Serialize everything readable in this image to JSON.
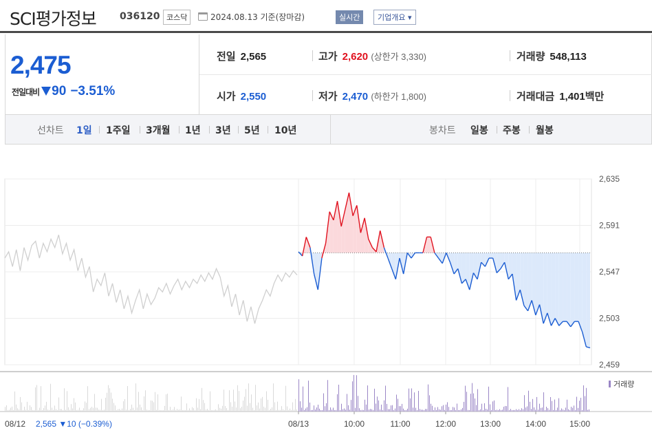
{
  "header": {
    "name": "SCI평가정보",
    "code": "036120",
    "market": "코스닥",
    "date": "2024.08.13 기준(장마감)",
    "realtime": "실시간",
    "company_info": "기업개요 ▾"
  },
  "quote": {
    "price": "2,475",
    "change_label": "전일대비",
    "change_value": "90",
    "change_pct": "−3.51%",
    "prev_close_label": "전일",
    "prev_close": "2,565",
    "open_label": "시가",
    "open": "2,550",
    "high_label": "고가",
    "high": "2,620",
    "upper_limit": "(상한가 3,330)",
    "low_label": "저가",
    "low": "2,470",
    "lower_limit": "(하한가 1,800)",
    "volume_label": "거래량",
    "volume": "548,113",
    "amount_label": "거래대금",
    "amount": "1,401",
    "amount_unit": "백만"
  },
  "tabs": {
    "line_label": "선차트",
    "line_periods": [
      "1일",
      "1주일",
      "3개월",
      "1년",
      "3년",
      "5년",
      "10년"
    ],
    "active": "1일",
    "candle_label": "봉차트",
    "candle_periods": [
      "일봉",
      "주봉",
      "월봉"
    ]
  },
  "colors": {
    "up": "#e0111e",
    "down": "#1b5dd2",
    "prev_line": "#cfcfcf",
    "volume": "#9a86c6"
  },
  "chart_data": {
    "type": "line",
    "y_ticks": [
      "2,635",
      "2,591",
      "2,547",
      "2,503",
      "2,459"
    ],
    "y_tick_values": [
      2635,
      2591,
      2547,
      2503,
      2459
    ],
    "ylim": [
      2459,
      2635
    ],
    "reference_price": 2565,
    "x_ticks": [
      "08/12",
      "08/13",
      "10:00",
      "11:00",
      "12:00",
      "13:00",
      "14:00",
      "15:00"
    ],
    "volume_legend": "거래량",
    "prev_day_summary": "2,565 ▼10 (−0.39%)",
    "series": [
      {
        "values": [
          2560,
          2566,
          2552,
          2568,
          2548,
          2570,
          2558,
          2572,
          2576,
          2560,
          2574,
          2566,
          2578,
          2570,
          2582,
          2564,
          2574,
          2558,
          2568,
          2548,
          2560,
          2542,
          2552,
          2528,
          2540,
          2534,
          2546,
          2524,
          2536,
          2518,
          2530,
          2512,
          2524,
          2508,
          2520,
          2530,
          2512,
          2526,
          2516,
          2522,
          2532,
          2528,
          2536,
          2526,
          2534,
          2540,
          2530,
          2538,
          2532,
          2540,
          2536,
          2544,
          2538,
          2546,
          2540,
          2550,
          2542,
          2524,
          2534,
          2514,
          2526,
          2506,
          2520,
          2500,
          2514,
          2498,
          2512,
          2520,
          2530,
          2524,
          2536,
          2544,
          2538,
          2546,
          2542,
          2548,
          2544
        ]
      },
      {
        "name": "",
        "values": [
          2566,
          2562,
          2580,
          2570,
          2545,
          2530,
          2560,
          2574,
          2604,
          2596,
          2614,
          2590,
          2606,
          2622,
          2600,
          2610,
          2584,
          2598,
          2578,
          2570,
          2566,
          2586,
          2570,
          2560,
          2550,
          2540,
          2560,
          2545,
          2565,
          2560,
          2565,
          2565,
          2565,
          2580,
          2580,
          2565,
          2560,
          2555,
          2565,
          2556,
          2545,
          2550,
          2536,
          2540,
          2530,
          2546,
          2540,
          2556,
          2552,
          2560,
          2560,
          2546,
          2550,
          2556,
          2540,
          2545,
          2520,
          2530,
          2515,
          2510,
          2520,
          2506,
          2516,
          2498,
          2508,
          2496,
          2503,
          2496,
          2500,
          2500,
          2495,
          2500,
          2500,
          2490,
          2476,
          2475
        ]
      }
    ]
  }
}
